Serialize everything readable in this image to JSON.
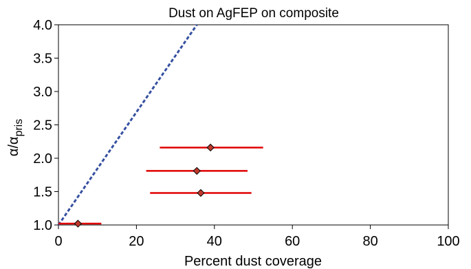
{
  "chart_data": {
    "type": "scatter",
    "title": "Dust on AgFEP on composite",
    "xlabel": "Percent dust coverage",
    "ylabel": {
      "base": "α/α",
      "sub": "pris"
    },
    "xlim": [
      0,
      100
    ],
    "ylim": [
      1.0,
      4.0
    ],
    "x_ticks": [
      0,
      20,
      40,
      60,
      80,
      100
    ],
    "x_tick_labels": [
      "0",
      "20",
      "40",
      "60",
      "80",
      "100"
    ],
    "y_ticks": [
      1.0,
      1.5,
      2.0,
      2.5,
      3.0,
      3.5,
      4.0
    ],
    "y_tick_labels": [
      "1.0",
      "1.5",
      "2.0",
      "2.5",
      "3.0",
      "3.5",
      "4.0"
    ],
    "grid": false,
    "series": [
      {
        "type": "scatter",
        "marker": "diamond",
        "color": "#c0392b",
        "errorbar_color": "#e00000",
        "points": [
          {
            "x": 5,
            "y": 1.02,
            "xerr": [
              0,
              11
            ]
          },
          {
            "x": 36.5,
            "y": 1.48,
            "xerr": [
              23.5,
              49.5
            ]
          },
          {
            "x": 35.5,
            "y": 1.81,
            "xerr": [
              22.5,
              48.5
            ]
          },
          {
            "x": 39,
            "y": 2.16,
            "xerr": [
              26,
              52.5
            ]
          }
        ]
      },
      {
        "type": "line",
        "style": "dashed",
        "color": "#3550a0",
        "x": [
          0,
          35.5
        ],
        "y": [
          1.0,
          4.0
        ]
      }
    ]
  }
}
